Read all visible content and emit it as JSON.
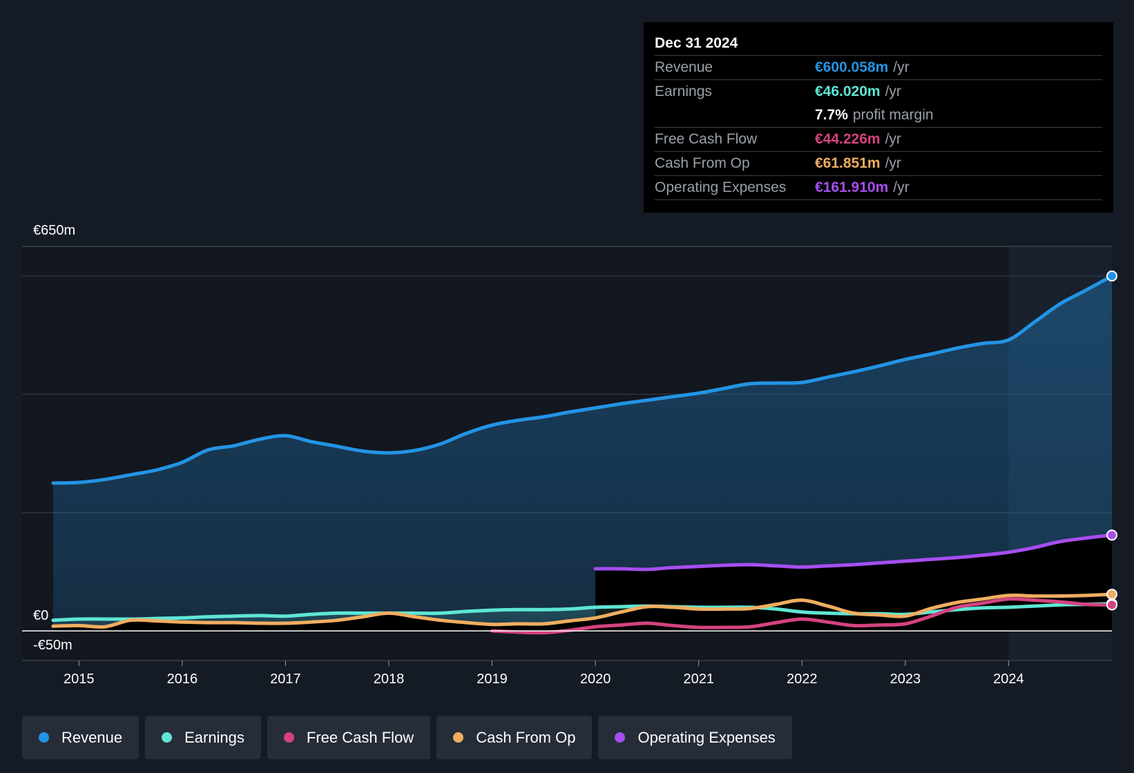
{
  "tooltip": {
    "date": "Dec 31 2024",
    "rows": [
      {
        "label": "Revenue",
        "value": "€600.058m",
        "unit": "/yr",
        "color": "#2394e5"
      },
      {
        "label": "Earnings",
        "value": "€46.020m",
        "unit": "/yr",
        "color": "#5ee6d4"
      },
      {
        "label": "",
        "value": "7.7%",
        "unit": "profit margin",
        "color": "#ffffff"
      },
      {
        "label": "Free Cash Flow",
        "value": "€44.226m",
        "unit": "/yr",
        "color": "#d4437f"
      },
      {
        "label": "Cash From Op",
        "value": "€61.851m",
        "unit": "/yr",
        "color": "#f0ad60"
      },
      {
        "label": "Operating Expenses",
        "value": "€161.910m",
        "unit": "/yr",
        "color": "#a64ef0"
      }
    ]
  },
  "legend": [
    {
      "label": "Revenue",
      "color": "#2394e5"
    },
    {
      "label": "Earnings",
      "color": "#5ee6d4"
    },
    {
      "label": "Free Cash Flow",
      "color": "#d4437f"
    },
    {
      "label": "Cash From Op",
      "color": "#f0ad60"
    },
    {
      "label": "Operating Expenses",
      "color": "#a64ef0"
    }
  ],
  "chart_data": {
    "type": "area",
    "title": "",
    "xlabel": "",
    "ylabel": "",
    "y_top_label": "€650m",
    "y_zero_label": "€0",
    "y_bottom_label": "-€50m",
    "ylim": [
      -50,
      650
    ],
    "xlim": [
      2014.45,
      2025.0
    ],
    "x_ticks": [
      2015,
      2016,
      2017,
      2018,
      2019,
      2020,
      2021,
      2022,
      2023,
      2024
    ],
    "gridlines": [
      0,
      200,
      400,
      600
    ],
    "highlight_from": 2024.0,
    "series": [
      {
        "name": "Revenue",
        "color": "#2394e5",
        "fill": true,
        "points": [
          [
            2014.75,
            250
          ],
          [
            2015.0,
            251
          ],
          [
            2015.25,
            256
          ],
          [
            2015.5,
            264
          ],
          [
            2015.75,
            272
          ],
          [
            2016.0,
            285
          ],
          [
            2016.25,
            306
          ],
          [
            2016.5,
            313
          ],
          [
            2016.75,
            324
          ],
          [
            2017.0,
            330
          ],
          [
            2017.25,
            320
          ],
          [
            2017.5,
            312
          ],
          [
            2017.75,
            304
          ],
          [
            2018.0,
            301
          ],
          [
            2018.25,
            305
          ],
          [
            2018.5,
            316
          ],
          [
            2018.75,
            334
          ],
          [
            2019.0,
            348
          ],
          [
            2019.25,
            356
          ],
          [
            2019.5,
            362
          ],
          [
            2019.75,
            370
          ],
          [
            2020.0,
            377
          ],
          [
            2020.25,
            384
          ],
          [
            2020.5,
            390
          ],
          [
            2020.75,
            396
          ],
          [
            2021.0,
            402
          ],
          [
            2021.25,
            410
          ],
          [
            2021.5,
            418
          ],
          [
            2021.75,
            419
          ],
          [
            2022.0,
            420
          ],
          [
            2022.25,
            429
          ],
          [
            2022.5,
            438
          ],
          [
            2022.75,
            448
          ],
          [
            2023.0,
            459
          ],
          [
            2023.25,
            468
          ],
          [
            2023.5,
            478
          ],
          [
            2023.75,
            486
          ],
          [
            2024.0,
            492
          ],
          [
            2024.25,
            522
          ],
          [
            2024.5,
            553
          ],
          [
            2024.75,
            576
          ],
          [
            2025.0,
            600
          ]
        ]
      },
      {
        "name": "Operating Expenses",
        "color": "#a64ef0",
        "fill": true,
        "points": [
          [
            2020.0,
            105
          ],
          [
            2020.25,
            105
          ],
          [
            2020.5,
            104
          ],
          [
            2020.75,
            107
          ],
          [
            2021.0,
            109
          ],
          [
            2021.25,
            111
          ],
          [
            2021.5,
            112
          ],
          [
            2021.75,
            110
          ],
          [
            2022.0,
            108
          ],
          [
            2022.25,
            110
          ],
          [
            2022.5,
            112
          ],
          [
            2022.75,
            115
          ],
          [
            2023.0,
            118
          ],
          [
            2023.25,
            121
          ],
          [
            2023.5,
            124
          ],
          [
            2023.75,
            128
          ],
          [
            2024.0,
            133
          ],
          [
            2024.25,
            141
          ],
          [
            2024.5,
            151
          ],
          [
            2024.75,
            157
          ],
          [
            2025.0,
            162
          ]
        ]
      },
      {
        "name": "Earnings",
        "color": "#5ee6d4",
        "fill": true,
        "points": [
          [
            2014.75,
            18
          ],
          [
            2015.0,
            20
          ],
          [
            2015.25,
            20
          ],
          [
            2015.5,
            20
          ],
          [
            2015.75,
            21
          ],
          [
            2016.0,
            22
          ],
          [
            2016.25,
            24
          ],
          [
            2016.5,
            25
          ],
          [
            2016.75,
            26
          ],
          [
            2017.0,
            25
          ],
          [
            2017.25,
            28
          ],
          [
            2017.5,
            30
          ],
          [
            2017.75,
            30
          ],
          [
            2018.0,
            30
          ],
          [
            2018.25,
            30
          ],
          [
            2018.5,
            30
          ],
          [
            2018.75,
            33
          ],
          [
            2019.0,
            35
          ],
          [
            2019.25,
            36
          ],
          [
            2019.5,
            36
          ],
          [
            2019.75,
            37
          ],
          [
            2020.0,
            40
          ],
          [
            2020.25,
            41
          ],
          [
            2020.5,
            42
          ],
          [
            2020.75,
            41
          ],
          [
            2021.0,
            40
          ],
          [
            2021.25,
            40
          ],
          [
            2021.5,
            40
          ],
          [
            2021.75,
            37
          ],
          [
            2022.0,
            32
          ],
          [
            2022.25,
            30
          ],
          [
            2022.5,
            29
          ],
          [
            2022.75,
            29
          ],
          [
            2023.0,
            28
          ],
          [
            2023.25,
            32
          ],
          [
            2023.5,
            36
          ],
          [
            2023.75,
            39
          ],
          [
            2024.0,
            40
          ],
          [
            2024.25,
            42
          ],
          [
            2024.5,
            44
          ],
          [
            2024.75,
            45
          ],
          [
            2025.0,
            46
          ]
        ]
      },
      {
        "name": "Cash From Op",
        "color": "#f0ad60",
        "fill": true,
        "points": [
          [
            2014.75,
            8
          ],
          [
            2015.0,
            9
          ],
          [
            2015.25,
            7
          ],
          [
            2015.5,
            18
          ],
          [
            2015.75,
            17
          ],
          [
            2016.0,
            15
          ],
          [
            2016.25,
            14
          ],
          [
            2016.5,
            14
          ],
          [
            2016.75,
            13
          ],
          [
            2017.0,
            13
          ],
          [
            2017.25,
            15
          ],
          [
            2017.5,
            18
          ],
          [
            2017.75,
            24
          ],
          [
            2018.0,
            30
          ],
          [
            2018.25,
            24
          ],
          [
            2018.5,
            18
          ],
          [
            2018.75,
            14
          ],
          [
            2019.0,
            11
          ],
          [
            2019.25,
            12
          ],
          [
            2019.5,
            12
          ],
          [
            2019.75,
            17
          ],
          [
            2020.0,
            22
          ],
          [
            2020.25,
            32
          ],
          [
            2020.5,
            41
          ],
          [
            2020.75,
            40
          ],
          [
            2021.0,
            37
          ],
          [
            2021.25,
            37
          ],
          [
            2021.5,
            38
          ],
          [
            2021.75,
            45
          ],
          [
            2022.0,
            52
          ],
          [
            2022.25,
            42
          ],
          [
            2022.5,
            30
          ],
          [
            2022.75,
            27
          ],
          [
            2023.0,
            25
          ],
          [
            2023.25,
            38
          ],
          [
            2023.5,
            48
          ],
          [
            2023.75,
            54
          ],
          [
            2024.0,
            60
          ],
          [
            2024.25,
            59
          ],
          [
            2024.5,
            59
          ],
          [
            2024.75,
            60
          ],
          [
            2025.0,
            62
          ]
        ]
      },
      {
        "name": "Free Cash Flow",
        "color": "#d4437f",
        "fill": true,
        "points": [
          [
            2019.0,
            0
          ],
          [
            2019.25,
            -2
          ],
          [
            2019.5,
            -3
          ],
          [
            2019.75,
            1
          ],
          [
            2020.0,
            7
          ],
          [
            2020.25,
            10
          ],
          [
            2020.5,
            13
          ],
          [
            2020.75,
            9
          ],
          [
            2021.0,
            6
          ],
          [
            2021.25,
            6
          ],
          [
            2021.5,
            7
          ],
          [
            2021.75,
            14
          ],
          [
            2022.0,
            20
          ],
          [
            2022.25,
            15
          ],
          [
            2022.5,
            9
          ],
          [
            2022.75,
            10
          ],
          [
            2023.0,
            12
          ],
          [
            2023.25,
            25
          ],
          [
            2023.5,
            40
          ],
          [
            2023.75,
            47
          ],
          [
            2024.0,
            54
          ],
          [
            2024.25,
            52
          ],
          [
            2024.5,
            49
          ],
          [
            2024.75,
            45
          ],
          [
            2025.0,
            44
          ]
        ]
      }
    ]
  }
}
